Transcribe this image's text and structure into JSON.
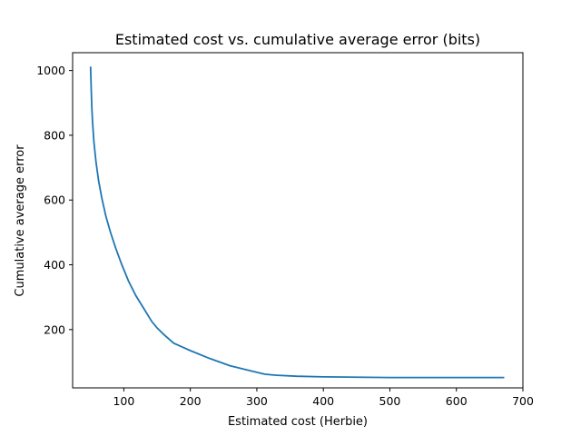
{
  "chart_data": {
    "type": "line",
    "title": "Estimated cost vs. cumulative average error (bits)",
    "xlabel": "Estimated cost (Herbie)",
    "ylabel": "Cumulative average error",
    "xlim": [
      23,
      700
    ],
    "ylim": [
      20,
      1055
    ],
    "xticks": [
      100,
      200,
      300,
      400,
      500,
      600,
      700
    ],
    "yticks": [
      200,
      400,
      600,
      800,
      1000
    ],
    "grid": false,
    "series": [
      {
        "color": "#1f77b4",
        "x": [
          50,
          51,
          52,
          53,
          55,
          58,
          62,
          67,
          73,
          80,
          88,
          97,
          107,
          118,
          130,
          142,
          150,
          160,
          175,
          200,
          230,
          260,
          290,
          312,
          330,
          360,
          400,
          450,
          500,
          560,
          620,
          672
        ],
        "y": [
          1012,
          940,
          880,
          840,
          780,
          720,
          660,
          605,
          550,
          500,
          450,
          400,
          350,
          305,
          265,
          225,
          205,
          185,
          158,
          135,
          110,
          88,
          73,
          62,
          59,
          56,
          54,
          53,
          52,
          52,
          52,
          52
        ]
      }
    ]
  }
}
